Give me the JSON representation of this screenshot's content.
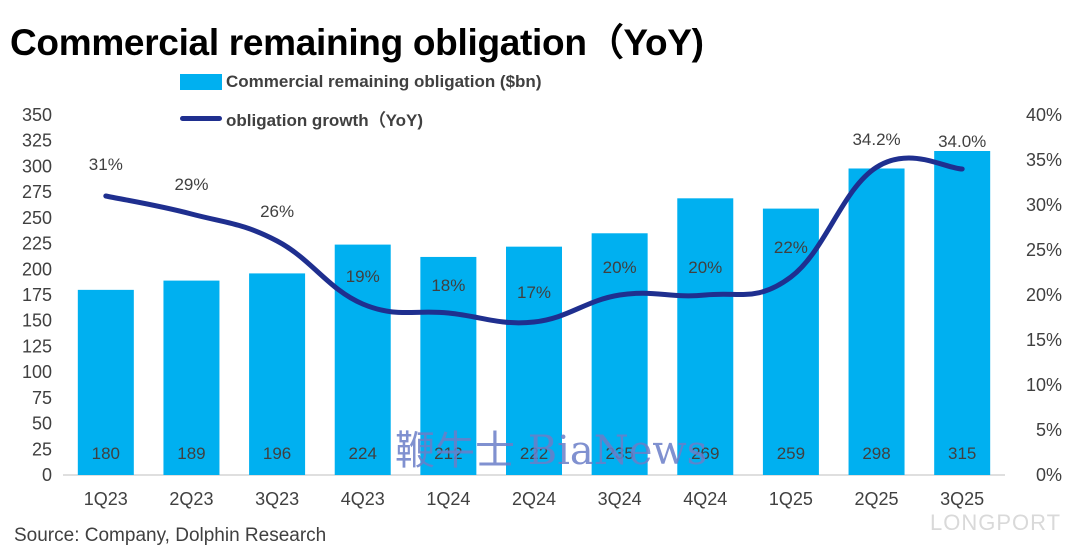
{
  "title": "Commercial remaining obligation（YoY)",
  "source": "Source:  Company, Dolphin Research",
  "watermark_center": "鞭牛士 BiaNews",
  "watermark_corner": "LONGPORT",
  "colors": {
    "bar": "#00b0f0",
    "line": "#1f2f8f",
    "text": "#404040"
  },
  "chart_data": {
    "type": "bar",
    "categories": [
      "1Q23",
      "2Q23",
      "3Q23",
      "4Q23",
      "1Q24",
      "2Q24",
      "3Q24",
      "4Q24",
      "1Q25",
      "2Q25",
      "3Q25"
    ],
    "series": [
      {
        "name": "Commercial remaining obligation ($bn)",
        "type": "bar",
        "axis": "left",
        "values": [
          180,
          189,
          196,
          224,
          212,
          222,
          235,
          269,
          259,
          298,
          315
        ],
        "labels": [
          "180",
          "189",
          "196",
          "224",
          "212",
          "222",
          "235",
          "269",
          "259",
          "298",
          "315"
        ]
      },
      {
        "name": "obligation growth（YoY)",
        "type": "line",
        "axis": "right",
        "values": [
          31,
          29,
          26,
          19,
          18,
          17,
          20,
          20,
          22,
          34.2,
          34.0
        ],
        "labels": [
          "31%",
          "29%",
          "26%",
          "19%",
          "18%",
          "17%",
          "20%",
          "20%",
          "22%",
          "34.2%",
          "34.0%"
        ]
      }
    ],
    "y_left": {
      "min": 0,
      "max": 350,
      "ticks": [
        "0",
        "25",
        "50",
        "75",
        "100",
        "125",
        "150",
        "175",
        "200",
        "225",
        "250",
        "275",
        "300",
        "325",
        "350"
      ]
    },
    "y_right": {
      "min": 0,
      "max": 40,
      "ticks": [
        "0%",
        "5%",
        "10%",
        "15%",
        "20%",
        "25%",
        "30%",
        "35%",
        "40%"
      ]
    },
    "legend_position": "top-left",
    "grid": false
  }
}
